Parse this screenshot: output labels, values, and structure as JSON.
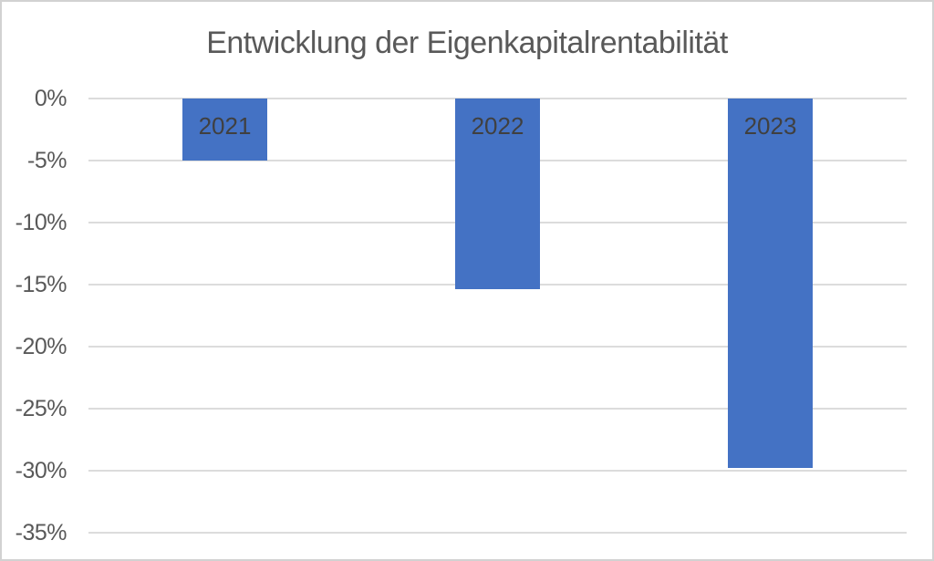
{
  "title": "Entwicklung der Eigenkapitalrentabilität",
  "colors": {
    "bar": "#4472C4",
    "gridline": "#DCDCDC",
    "title_text": "#595959",
    "tick_text": "#595959",
    "bar_label_text": "#404040",
    "border": "#D2D2D2",
    "background": "#FFFFFF"
  },
  "chart_data": {
    "type": "bar",
    "title": "Entwicklung der Eigenkapitalrentabilität",
    "categories": [
      "2021",
      "2022",
      "2023"
    ],
    "values": [
      -5.0,
      -15.4,
      -29.8
    ],
    "unit": "%",
    "xlabel": "",
    "ylabel": "",
    "ylim": [
      -35,
      0
    ],
    "yticks": [
      {
        "value": 0,
        "label": "0%"
      },
      {
        "value": -5,
        "label": "-5%"
      },
      {
        "value": -10,
        "label": "-10%"
      },
      {
        "value": -15,
        "label": "-15%"
      },
      {
        "value": -20,
        "label": "-20%"
      },
      {
        "value": -25,
        "label": "-25%"
      },
      {
        "value": -30,
        "label": "-30%"
      },
      {
        "value": -35,
        "label": "-35%"
      }
    ],
    "grid": true,
    "legend": false,
    "bar_labels_inside_top": true,
    "bars_direction": "negative-down"
  }
}
